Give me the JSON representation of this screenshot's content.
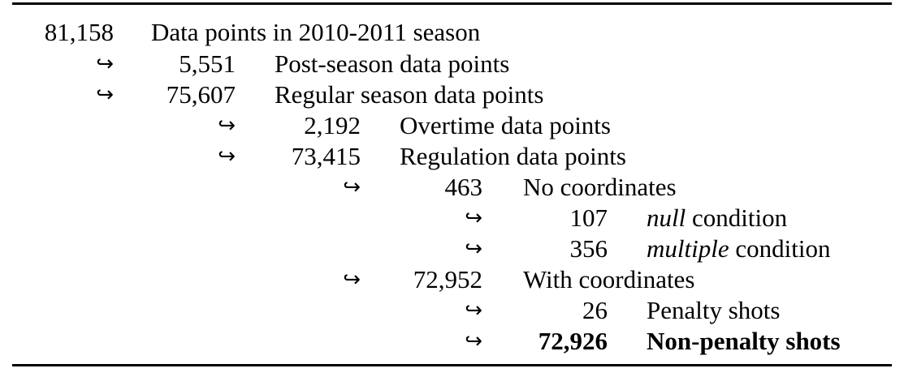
{
  "rows": [
    {
      "value": "81,158",
      "label": "Data points in 2010-2011 season"
    },
    {
      "value": "5,551",
      "label": "Post-season data points"
    },
    {
      "value": "75,607",
      "label": "Regular season data points"
    },
    {
      "value": "2,192",
      "label": "Overtime data points"
    },
    {
      "value": "73,415",
      "label": "Regulation data points"
    },
    {
      "value": "463",
      "label": "No coordinates"
    },
    {
      "value": "107",
      "label_em": "null",
      "label_rest": " condition"
    },
    {
      "value": "356",
      "label_em": "multiple",
      "label_rest": " condition"
    },
    {
      "value": "72,952",
      "label": "With coordinates"
    },
    {
      "value": "26",
      "label": "Penalty shots"
    },
    {
      "value": "72,926",
      "label": "Non-penalty shots"
    }
  ],
  "arrow_glyph": "↪"
}
